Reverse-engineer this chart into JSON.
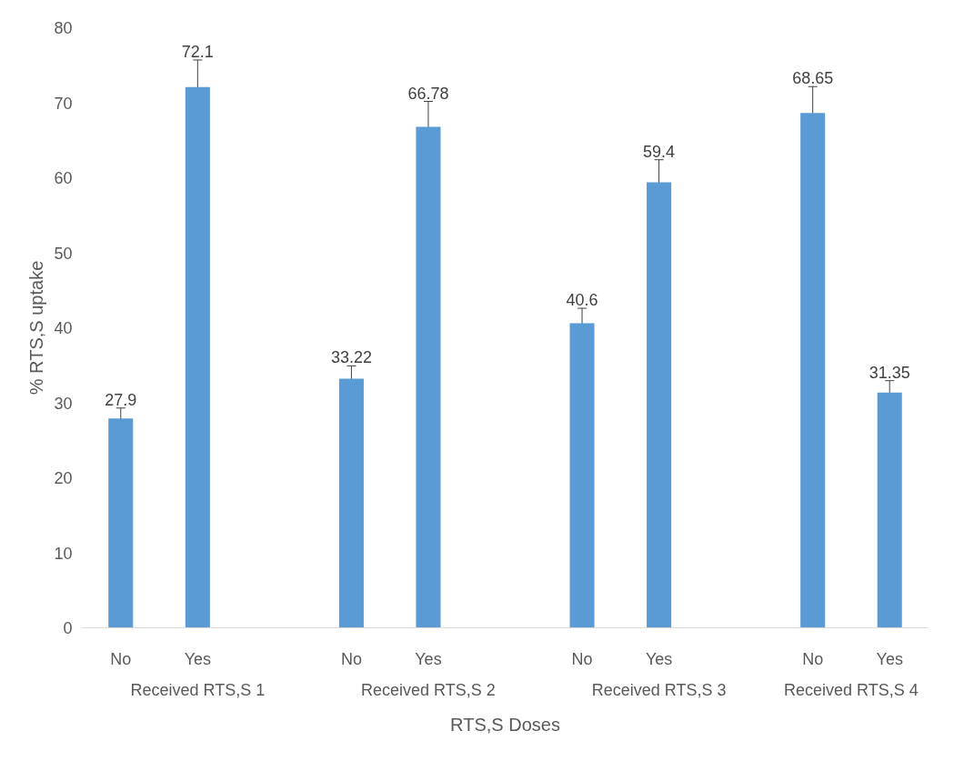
{
  "chart_data": {
    "type": "bar",
    "xlabel": "RTS,S Doses",
    "ylabel": "% RTS,S uptake",
    "categories": [
      "No",
      "Yes",
      null,
      "No",
      "Yes",
      null,
      "No",
      "Yes",
      null,
      "No",
      "Yes"
    ],
    "values": [
      27.9,
      72.1,
      null,
      33.22,
      66.78,
      null,
      40.6,
      59.4,
      null,
      68.65,
      31.35
    ],
    "errors": [
      1.4,
      3.6,
      null,
      1.7,
      3.4,
      null,
      2.0,
      3.0,
      null,
      3.5,
      1.6
    ],
    "color": "#5b9bd5",
    "data_labels": true,
    "ylim": [
      0,
      80
    ],
    "yticks": [
      0,
      10,
      20,
      30,
      40,
      50,
      60,
      70,
      80
    ],
    "grid": false,
    "annotations": [
      "Received RTS,S 1",
      "Received RTS,S 2",
      "Received RTS,S 3",
      "Received RTS,S 4"
    ]
  }
}
